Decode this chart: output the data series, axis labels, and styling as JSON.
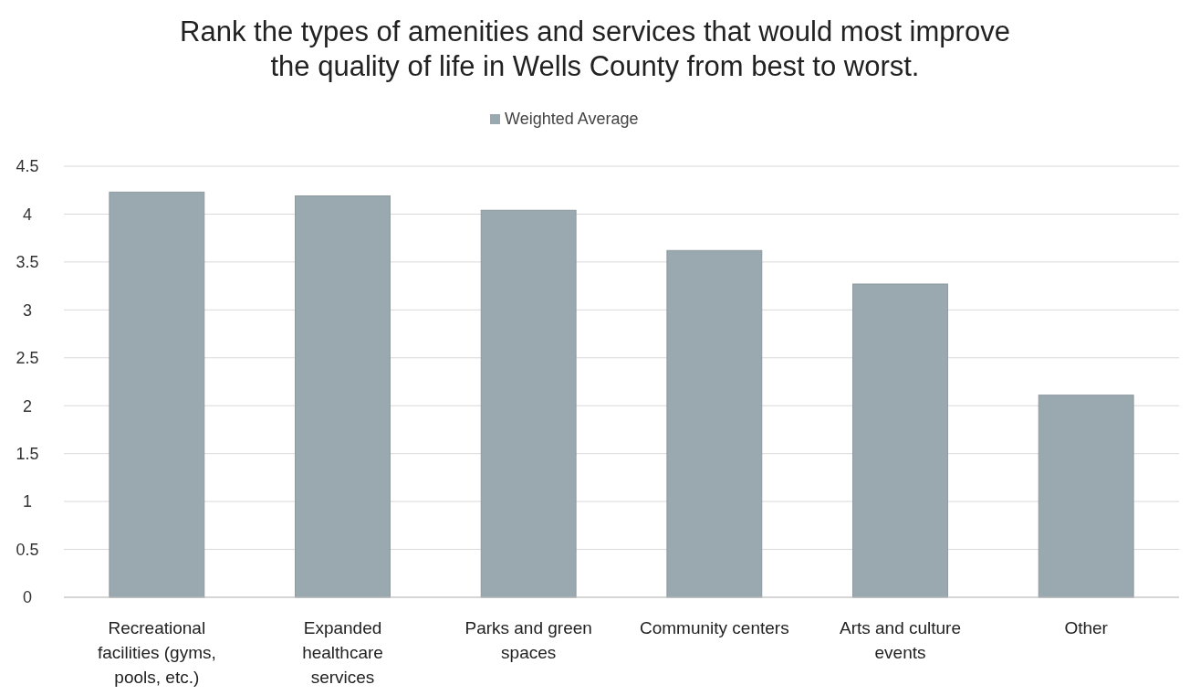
{
  "chart_data": {
    "type": "bar",
    "title": "Rank the types of amenities and services that would most improve the quality of life in Wells County from best to worst.",
    "categories": [
      "Recreational facilities (gyms, pools, etc.)",
      "Expanded healthcare services",
      "Parks and green spaces",
      "Community centers",
      "Arts and culture events",
      "Other"
    ],
    "series": [
      {
        "name": "Weighted Average",
        "color": "#9aa8b0",
        "values": [
          4.23,
          4.19,
          4.04,
          3.62,
          3.27,
          2.11
        ]
      }
    ],
    "ylim": [
      0,
      4.5
    ],
    "yticks": [
      0,
      0.5,
      1,
      1.5,
      2,
      2.5,
      3,
      3.5,
      4,
      4.5
    ],
    "grid": "y",
    "legend": "top"
  }
}
